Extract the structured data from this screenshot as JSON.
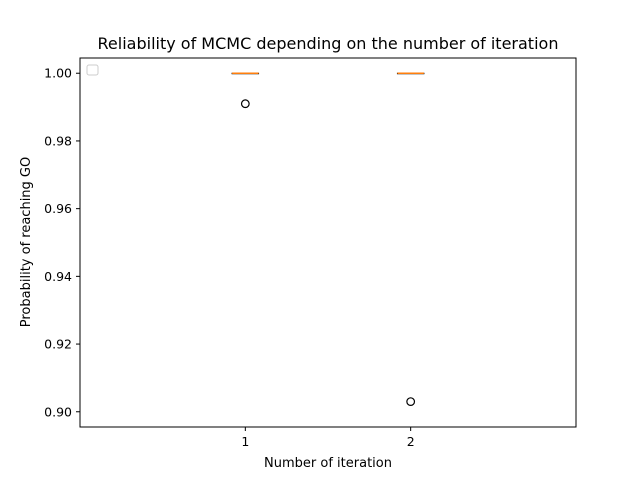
{
  "chart_data": {
    "type": "box",
    "title": "Reliability of MCMC depending on the number of iteration",
    "xlabel": "Number of iteration",
    "ylabel": "Probability of reaching GO",
    "categories": [
      "1",
      "2"
    ],
    "ylim": [
      0.8955,
      1.0045
    ],
    "yticks": [
      "0.90",
      "0.92",
      "0.94",
      "0.96",
      "0.98",
      "1.00"
    ],
    "boxes": [
      {
        "category": "1",
        "min": 1.0,
        "q1": 1.0,
        "median": 1.0,
        "q3": 1.0,
        "max": 1.0,
        "outliers": [
          0.991
        ]
      },
      {
        "category": "2",
        "min": 1.0,
        "q1": 1.0,
        "median": 1.0,
        "q3": 1.0,
        "max": 1.0,
        "outliers": [
          0.903
        ]
      }
    ],
    "legend": {
      "placement": "upper-left",
      "entries": []
    },
    "grid": false,
    "colors": {
      "median": "#ff7f0e",
      "box": "#000000",
      "outlier": "#000000"
    }
  }
}
